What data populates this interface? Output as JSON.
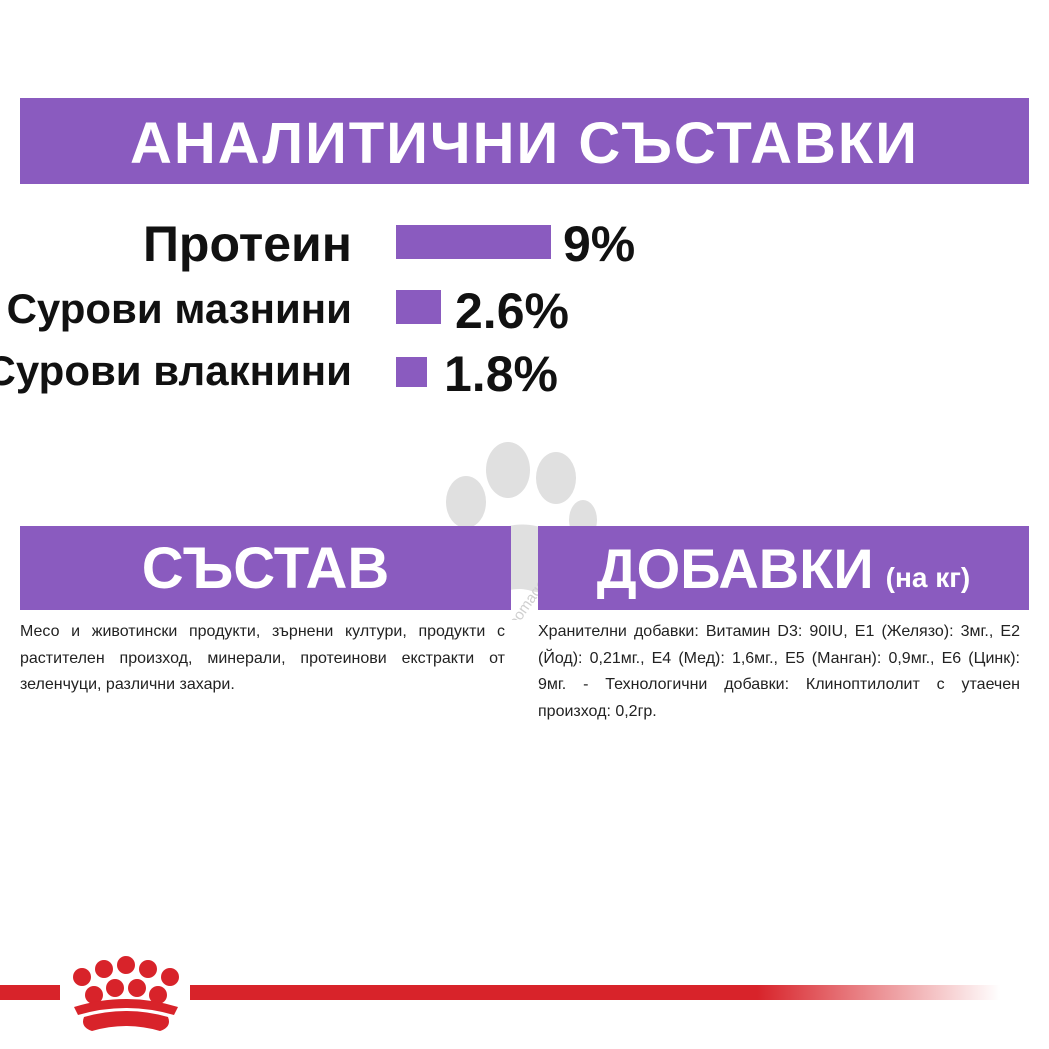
{
  "analytic": {
    "title": "АНАЛИТИЧНИ СЪСТАВКИ",
    "rows": [
      {
        "label": "Протеин",
        "value": "9%",
        "percent": 9
      },
      {
        "label": "Сурови мазнини",
        "value": "2.6%",
        "percent": 2.6
      },
      {
        "label": "Сурови влакнини",
        "value": "1.8%",
        "percent": 1.8
      }
    ]
  },
  "composition": {
    "title": "СЪСТАВ",
    "text": "Месо и животински продукти, зърнени култури, продукти с растителен произход, минерали, протеинови екстракти от зеленчуци, различни захари."
  },
  "additives": {
    "title": "ДОБАВКИ",
    "subtitle": "(на кг)",
    "text": "Хранителни добавки: Витамин D3: 90IU, E1 (Желязо): 3мг., E2 (Йод): 0,21мг., E4 (Мед): 1,6мг., E5 (Манган): 0,9мг., E6 (Цинк): 9мг. - Технологични добавки: Клиноптилолит с утаечен произход: 0,2гр."
  },
  "watermark": {
    "text": "zoomagazin.eu",
    "icon": "paw-icon"
  },
  "brand": {
    "logo": "royal-canin-crown-logo",
    "color": "#d8232a"
  },
  "colors": {
    "accent": "#8a5bbf",
    "text": "#111111"
  }
}
